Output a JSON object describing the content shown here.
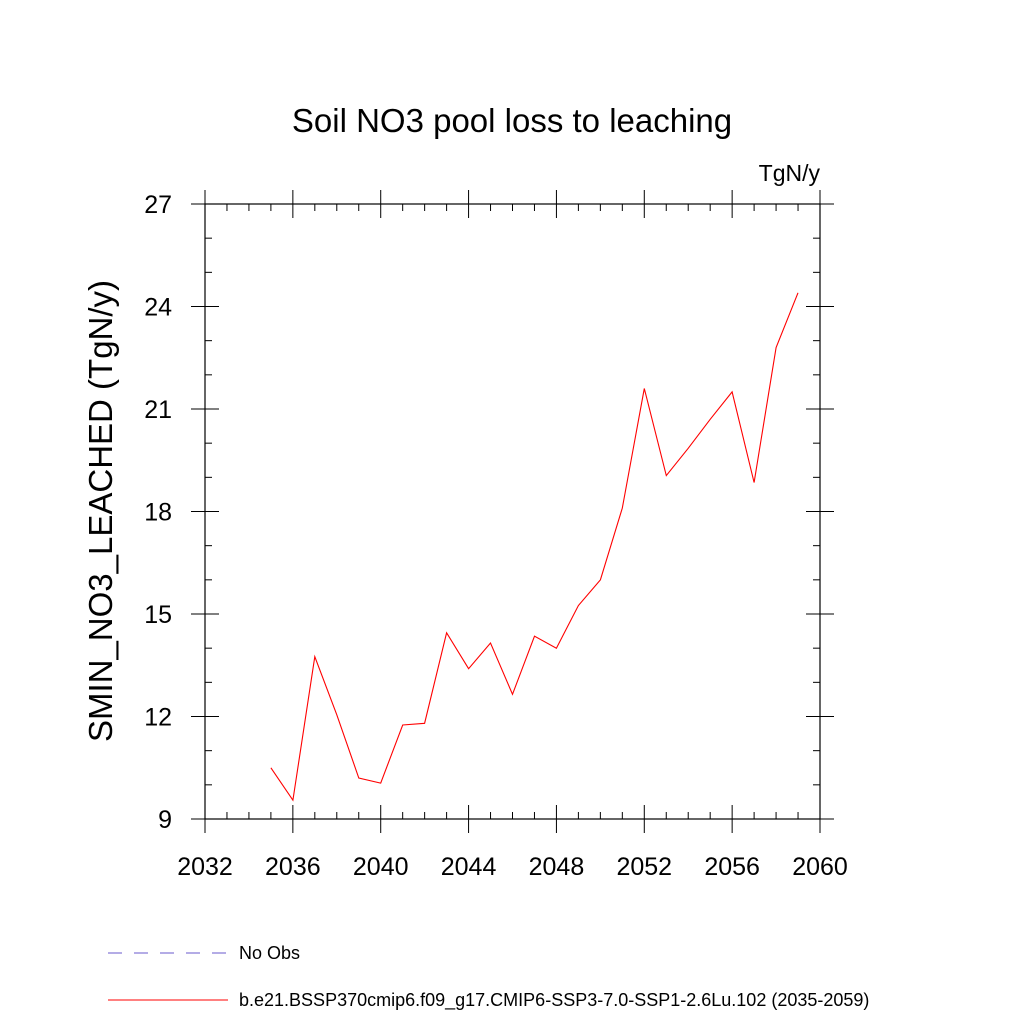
{
  "chart_data": {
    "type": "line",
    "title": "Soil NO3 pool loss to leaching",
    "units": "TgN/y",
    "ylabel": "SMIN_NO3_LEACHED  (TgN/y)",
    "xlabel": "",
    "xlim": [
      2032,
      2060
    ],
    "ylim": [
      9,
      27
    ],
    "x_ticks": [
      2032,
      2036,
      2040,
      2044,
      2048,
      2052,
      2056,
      2060
    ],
    "x_tick_labels": [
      "2032",
      "2036",
      "2040",
      "2044",
      "2048",
      "2052",
      "2056",
      "2060"
    ],
    "y_ticks": [
      9,
      12,
      15,
      18,
      21,
      24,
      27
    ],
    "y_tick_labels": [
      "9",
      "12",
      "15",
      "18",
      "21",
      "24",
      "27"
    ],
    "grid": false,
    "legend_position": "bottom",
    "series": [
      {
        "name": "No Obs",
        "color": "#6a5acd",
        "style": "dashed",
        "x": [],
        "values": []
      },
      {
        "name": "b.e21.BSSP370cmip6.f09_g17.CMIP6-SSP3-7.0-SSP1-2.6Lu.102 (2035-2059)",
        "color": "#ff0000",
        "style": "solid",
        "x": [
          2035,
          2036,
          2037,
          2038,
          2039,
          2040,
          2041,
          2042,
          2043,
          2044,
          2045,
          2046,
          2047,
          2048,
          2049,
          2050,
          2051,
          2052,
          2053,
          2054,
          2055,
          2056,
          2057,
          2058,
          2059
        ],
        "values": [
          10.5,
          9.55,
          13.75,
          12.05,
          10.2,
          10.05,
          11.75,
          11.8,
          14.45,
          13.4,
          14.15,
          12.65,
          14.35,
          14.0,
          15.25,
          16.0,
          18.1,
          21.6,
          19.05,
          19.85,
          20.7,
          21.5,
          18.85,
          22.8,
          24.4
        ]
      }
    ]
  }
}
